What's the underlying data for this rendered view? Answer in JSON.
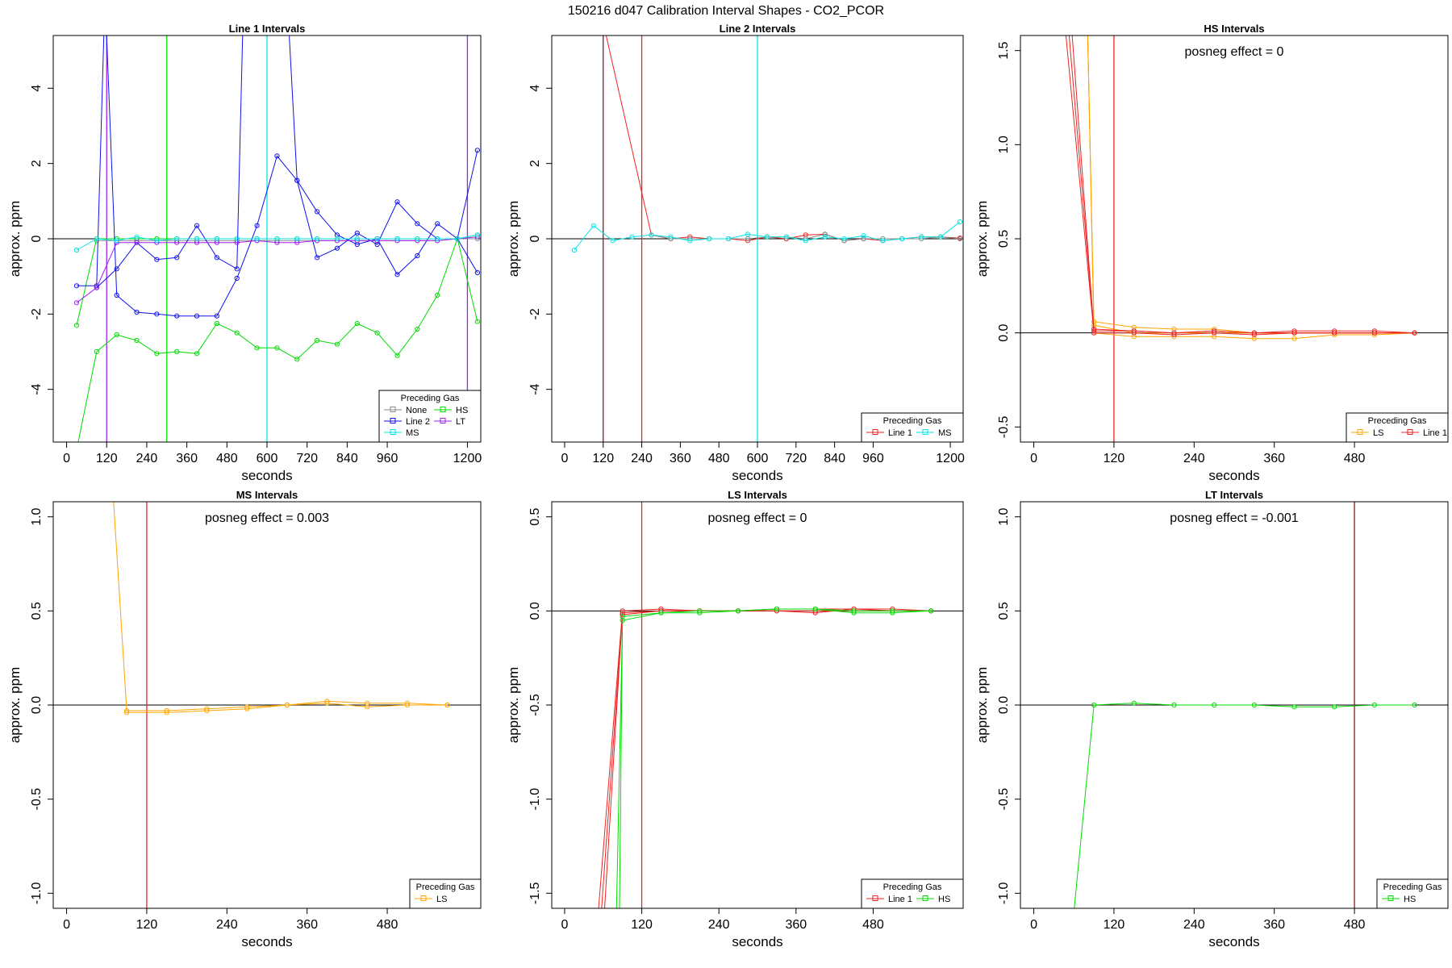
{
  "figure_title": "150216  d047   Calibration Interval Shapes - CO2_PCOR",
  "colors": {
    "None": "#888888",
    "HS": "#00dd00",
    "Line 2": "#1010ee",
    "LT": "#a020f0",
    "MS": "#00e6e6",
    "Line 1": "#ee2222",
    "LS": "#ffa500",
    "vline_dark": "#8b1a1a"
  },
  "chart_data": [
    {
      "type": "line",
      "title": "Line 1 Intervals",
      "xlabel": "seconds",
      "ylabel": "approx. ppm",
      "xlim": [
        -40,
        1240
      ],
      "ylim": [
        -5.4,
        5.4
      ],
      "xticks": [
        0,
        120,
        240,
        360,
        480,
        600,
        720,
        840,
        960,
        1200
      ],
      "yticks": [
        -4,
        -2,
        0,
        2,
        4
      ],
      "annotation": "",
      "legend": {
        "title": "Preceding Gas",
        "entries": [
          "None",
          "HS",
          "Line 2",
          "LT",
          "MS"
        ],
        "columns": 2,
        "placement": "bottom-right"
      },
      "vlines": [
        {
          "x": 120,
          "color": "LT"
        },
        {
          "x": 300,
          "color": "HS"
        },
        {
          "x": 600,
          "color": "MS"
        },
        {
          "x": 1200,
          "color": "LT"
        }
      ],
      "series": [
        {
          "name": "None",
          "x": [
            90,
            150,
            210,
            270,
            330,
            390,
            450,
            510,
            570,
            630,
            690,
            750,
            810,
            870,
            930,
            990,
            1050,
            1110,
            1170,
            1230
          ],
          "values": [
            -0.05,
            -0.05,
            -0.05,
            -0.05,
            -0.05,
            -0.05,
            -0.05,
            -0.05,
            -0.05,
            -0.05,
            -0.05,
            -0.05,
            -0.05,
            -0.05,
            -0.05,
            -0.05,
            -0.05,
            -0.05,
            0.0,
            0.0
          ]
        },
        {
          "name": "HS",
          "x": [
            30,
            90,
            150,
            210,
            270,
            330,
            390,
            450,
            510,
            570,
            630,
            690,
            750,
            810,
            870,
            930,
            990,
            1050,
            1110,
            1170,
            1230
          ],
          "values": [
            -5.6,
            -3.0,
            -2.55,
            -2.7,
            -3.05,
            -3.0,
            -3.05,
            -2.25,
            -2.5,
            -2.9,
            -2.9,
            -3.2,
            -2.7,
            -2.8,
            -2.25,
            -2.5,
            -3.1,
            -2.4,
            -1.5,
            0.0,
            -2.2
          ]
        },
        {
          "name": "HS",
          "x": [
            30,
            90,
            150,
            210,
            270,
            330,
            390,
            450,
            510,
            570,
            630,
            690,
            750,
            810,
            870,
            930,
            990,
            1050,
            1110,
            1170,
            1230
          ],
          "values": [
            -2.3,
            0.0,
            0.0,
            0.0,
            0.0,
            0.0,
            0.0,
            0.0,
            0.0,
            0.0,
            0.0,
            0.0,
            0.0,
            0.0,
            0.0,
            0.0,
            0.0,
            0.0,
            0.0,
            0.0,
            0.1
          ]
        },
        {
          "name": "Line 2",
          "x": [
            30,
            90,
            115,
            150,
            210,
            270,
            330,
            390,
            450,
            510,
            570,
            630,
            690,
            750,
            810,
            870,
            930,
            990,
            1050,
            1110,
            1170,
            1230
          ],
          "values": [
            -1.25,
            -1.25,
            6.5,
            -1.5,
            -1.95,
            -2.0,
            -2.05,
            -2.05,
            -2.05,
            -1.05,
            0.35,
            2.2,
            1.55,
            -0.5,
            -0.25,
            0.15,
            -0.15,
            0.98,
            0.4,
            0.0,
            0.0,
            2.35
          ]
        },
        {
          "name": "Line 2",
          "x": [
            90,
            150,
            210,
            270,
            330,
            390,
            450,
            510,
            530,
            660,
            690,
            750,
            810,
            870,
            930,
            990,
            1050,
            1110,
            1170,
            1230
          ],
          "values": [
            -1.3,
            -0.8,
            -0.1,
            -0.55,
            -0.5,
            0.35,
            -0.5,
            -0.8,
            6.5,
            6.5,
            1.55,
            0.72,
            0.1,
            -0.15,
            0.0,
            -0.95,
            -0.45,
            0.4,
            0.0,
            -0.9
          ]
        },
        {
          "name": "LT",
          "x": [
            30,
            90,
            150,
            210,
            270,
            330,
            390,
            450,
            510,
            570,
            630,
            690,
            750,
            810,
            870,
            930,
            990,
            1050,
            1110,
            1170,
            1230
          ],
          "values": [
            -1.7,
            -1.3,
            -0.1,
            -0.1,
            -0.1,
            -0.1,
            -0.1,
            -0.1,
            -0.1,
            -0.05,
            -0.1,
            -0.1,
            -0.05,
            -0.05,
            -0.05,
            -0.05,
            -0.05,
            -0.05,
            -0.05,
            0.0,
            0.05
          ]
        },
        {
          "name": "MS",
          "x": [
            30,
            90,
            150,
            210,
            270,
            330,
            390,
            450,
            510,
            570,
            630,
            690,
            750,
            810,
            870,
            930,
            990,
            1050,
            1110,
            1170,
            1230
          ],
          "values": [
            -0.3,
            0.0,
            -0.05,
            0.05,
            -0.05,
            0.0,
            0.0,
            0.0,
            0.0,
            0.0,
            0.0,
            0.0,
            0.0,
            0.0,
            0.0,
            0.0,
            0.0,
            0.0,
            0.0,
            0.0,
            0.1
          ]
        }
      ]
    },
    {
      "type": "line",
      "title": "Line 2 Intervals",
      "xlabel": "seconds",
      "ylabel": "approx. ppm",
      "xlim": [
        -40,
        1240
      ],
      "ylim": [
        -5.4,
        5.4
      ],
      "xticks": [
        0,
        120,
        240,
        360,
        480,
        600,
        720,
        840,
        960,
        1200
      ],
      "yticks": [
        -4,
        -2,
        0,
        2,
        4
      ],
      "annotation": "",
      "legend": {
        "title": "Preceding Gas",
        "entries": [
          "Line 1",
          "MS"
        ],
        "columns": 2,
        "placement": "bottom-right"
      },
      "vlines": [
        {
          "x": 120,
          "color": "vline_dark"
        },
        {
          "x": 240,
          "color": "Line 1"
        },
        {
          "x": 600,
          "color": "MS"
        }
      ],
      "series": [
        {
          "name": "Line 1",
          "x": [
            100,
            270,
            330,
            390,
            450,
            510,
            570,
            630,
            690,
            750,
            810,
            870,
            930,
            990,
            1050,
            1110,
            1170,
            1230
          ],
          "values": [
            6.5,
            0.1,
            0.0,
            0.05,
            0.0,
            0.0,
            -0.05,
            0.05,
            0.0,
            0.1,
            0.12,
            -0.05,
            0.0,
            -0.05,
            0.0,
            0.05,
            0.05,
            0.02
          ]
        },
        {
          "name": "None",
          "x": [
            270,
            330,
            390,
            450,
            510,
            570,
            630,
            690,
            750,
            810,
            870,
            930,
            990,
            1050,
            1110,
            1170,
            1230
          ],
          "values": [
            0.1,
            0.0,
            0.0,
            0.0,
            0.0,
            0.0,
            0.05,
            0.05,
            0.0,
            0.12,
            -0.05,
            0.0,
            0.0,
            0.0,
            0.0,
            0.05,
            0.0
          ]
        },
        {
          "name": "MS",
          "x": [
            30,
            90,
            150,
            210,
            270,
            330,
            390,
            450,
            510,
            570,
            630,
            690,
            750,
            810,
            870,
            930,
            990,
            1050,
            1110,
            1170,
            1230
          ],
          "values": [
            -0.3,
            0.35,
            -0.05,
            0.05,
            0.1,
            0.05,
            -0.05,
            0.0,
            0.0,
            0.12,
            0.05,
            0.05,
            -0.05,
            0.05,
            0.0,
            0.08,
            -0.05,
            0.0,
            0.05,
            0.05,
            0.45
          ]
        }
      ]
    },
    {
      "type": "line",
      "title": "HS Intervals",
      "xlabel": "seconds",
      "ylabel": "approx. ppm",
      "xlim": [
        -20,
        620
      ],
      "ylim": [
        -0.58,
        1.58
      ],
      "xticks": [
        0,
        120,
        240,
        360,
        480
      ],
      "yticks": [
        -0.5,
        0.0,
        0.5,
        1.0,
        1.5
      ],
      "annotation": "posneg effect = 0",
      "legend": {
        "title": "Preceding Gas",
        "entries": [
          "LS",
          "Line 1"
        ],
        "columns": 2,
        "placement": "bottom-right"
      },
      "vlines": [
        {
          "x": 120,
          "color": "Line 1"
        }
      ],
      "series": [
        {
          "name": "LS",
          "x": [
            80,
            90,
            150,
            210,
            270,
            330,
            390,
            450,
            510,
            570
          ],
          "values": [
            1.7,
            0.04,
            0.0,
            0.0,
            0.0,
            0.0,
            0.0,
            0.0,
            0.0,
            0.0
          ]
        },
        {
          "name": "LS",
          "x": [
            80,
            90,
            150,
            210,
            270,
            330,
            390,
            450,
            510,
            570
          ],
          "values": [
            1.7,
            0.06,
            0.03,
            0.02,
            0.02,
            0.0,
            0.0,
            0.0,
            0.0,
            0.0
          ]
        },
        {
          "name": "LS",
          "x": [
            80,
            90,
            150,
            210,
            270,
            330,
            390,
            450,
            510,
            570
          ],
          "values": [
            1.7,
            0.0,
            -0.02,
            -0.02,
            -0.02,
            -0.03,
            -0.03,
            -0.01,
            -0.01,
            0.0
          ]
        },
        {
          "name": "Line 1",
          "x": [
            50,
            90,
            150,
            210,
            270,
            330,
            390,
            450,
            510,
            570
          ],
          "values": [
            1.7,
            0.02,
            0.01,
            0.0,
            0.01,
            0.0,
            0.01,
            0.01,
            0.01,
            0.0
          ]
        },
        {
          "name": "Line 1",
          "x": [
            45,
            90,
            150,
            210,
            270,
            330,
            390,
            450,
            510,
            570
          ],
          "values": [
            1.7,
            0.0,
            0.0,
            -0.01,
            0.0,
            -0.01,
            0.0,
            0.0,
            0.0,
            0.0
          ]
        },
        {
          "name": "Line 1",
          "x": [
            55,
            90,
            150,
            210,
            270,
            330,
            390,
            450,
            510,
            570
          ],
          "values": [
            1.7,
            0.01,
            0.01,
            0.0,
            0.01,
            0.0,
            0.0,
            0.0,
            0.0,
            0.0
          ]
        }
      ]
    },
    {
      "type": "line",
      "title": "MS Intervals",
      "xlabel": "seconds",
      "ylabel": "approx. ppm",
      "xlim": [
        -20,
        620
      ],
      "ylim": [
        -1.08,
        1.08
      ],
      "xticks": [
        0,
        120,
        240,
        360,
        480
      ],
      "yticks": [
        -1.0,
        -0.5,
        0.0,
        0.5,
        1.0
      ],
      "annotation": "posneg effect = 0.003",
      "legend": {
        "title": "Preceding Gas",
        "entries": [
          "LS"
        ],
        "columns": 1,
        "placement": "bottom-right"
      },
      "vlines": [
        {
          "x": 120,
          "color": "Line 1"
        }
      ],
      "series": [
        {
          "name": "LS",
          "x": [
            70,
            90,
            150,
            210,
            270,
            330,
            390,
            450,
            510,
            570
          ],
          "values": [
            1.1,
            -0.03,
            -0.03,
            -0.02,
            -0.01,
            0.0,
            0.02,
            0.01,
            0.01,
            0.0
          ]
        },
        {
          "name": "LS",
          "x": [
            90,
            150,
            210,
            270,
            330,
            390,
            450,
            510,
            570
          ],
          "values": [
            -0.04,
            -0.04,
            -0.03,
            -0.02,
            0.0,
            0.01,
            -0.01,
            0.0,
            0.0
          ]
        }
      ]
    },
    {
      "type": "line",
      "title": "LS Intervals",
      "xlabel": "seconds",
      "ylabel": "approx. ppm",
      "xlim": [
        -20,
        620
      ],
      "ylim": [
        -1.58,
        0.58
      ],
      "xticks": [
        0,
        120,
        240,
        360,
        480
      ],
      "yticks": [
        -1.5,
        -1.0,
        -0.5,
        0.0,
        0.5
      ],
      "annotation": "posneg effect = 0",
      "legend": {
        "title": "Preceding Gas",
        "entries": [
          "Line 1",
          "HS"
        ],
        "columns": 2,
        "placement": "bottom-right"
      },
      "vlines": [
        {
          "x": 120,
          "color": "Line 1"
        }
      ],
      "series": [
        {
          "name": "Line 1",
          "x": [
            50,
            90,
            150,
            210,
            270,
            330,
            390,
            450,
            510,
            570
          ],
          "values": [
            -1.7,
            0.0,
            0.01,
            0.0,
            0.0,
            0.0,
            0.0,
            0.0,
            0.0,
            0.0
          ]
        },
        {
          "name": "Line 1",
          "x": [
            55,
            90,
            150,
            210,
            270,
            330,
            390,
            450,
            510,
            570
          ],
          "values": [
            -1.7,
            -0.02,
            0.0,
            0.0,
            0.0,
            0.0,
            -0.01,
            0.01,
            0.01,
            0.0
          ]
        },
        {
          "name": "Line 1",
          "x": [
            60,
            90,
            150,
            210,
            270,
            330,
            390,
            450,
            510,
            570
          ],
          "values": [
            -1.7,
            -0.01,
            0.0,
            0.0,
            0.0,
            0.01,
            0.01,
            0.01,
            0.0,
            0.0
          ]
        },
        {
          "name": "HS",
          "x": [
            80,
            90,
            150,
            210,
            270,
            330,
            390,
            450,
            510,
            570
          ],
          "values": [
            -1.7,
            -0.05,
            -0.01,
            -0.01,
            0.0,
            0.01,
            0.01,
            0.0,
            0.0,
            0.0
          ]
        },
        {
          "name": "HS",
          "x": [
            85,
            90,
            150,
            210,
            270,
            330,
            390,
            450,
            510,
            570
          ],
          "values": [
            -1.7,
            -0.03,
            -0.01,
            0.0,
            0.0,
            0.01,
            0.01,
            -0.01,
            -0.01,
            0.0
          ]
        }
      ]
    },
    {
      "type": "line",
      "title": "LT Intervals",
      "xlabel": "seconds",
      "ylabel": "approx. ppm",
      "xlim": [
        -20,
        620
      ],
      "ylim": [
        -1.08,
        1.08
      ],
      "xticks": [
        0,
        120,
        240,
        360,
        480
      ],
      "yticks": [
        -1.0,
        -0.5,
        0.0,
        0.5,
        1.0
      ],
      "annotation": "posneg effect = -0.001",
      "legend": {
        "title": "Preceding Gas",
        "entries": [
          "HS"
        ],
        "columns": 1,
        "placement": "bottom-right"
      },
      "vlines": [
        {
          "x": 480,
          "color": "vline_dark"
        }
      ],
      "series": [
        {
          "name": "HS",
          "x": [
            60,
            90,
            150,
            210,
            270,
            330,
            390,
            450,
            510,
            570
          ],
          "values": [
            -1.1,
            0.0,
            0.01,
            0.0,
            0.0,
            0.0,
            -0.01,
            -0.01,
            0.0,
            0.0
          ]
        }
      ]
    }
  ]
}
